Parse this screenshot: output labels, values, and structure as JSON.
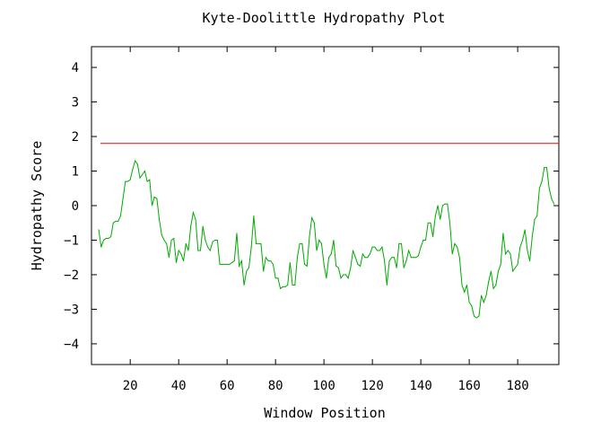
{
  "chart_data": {
    "type": "line",
    "title": "Kyte-Doolittle Hydropathy Plot",
    "xlabel": "Window Position",
    "ylabel": "Hydropathy Score",
    "xlim": [
      4,
      197
    ],
    "ylim": [
      -4.6,
      4.6
    ],
    "xticks": [
      20,
      40,
      60,
      80,
      100,
      120,
      140,
      160,
      180
    ],
    "yticks": [
      -4,
      -3,
      -2,
      -1,
      0,
      1,
      2,
      3,
      4
    ],
    "grid": false,
    "threshold": {
      "value": 1.8,
      "color": "#ff0000"
    },
    "series": [
      {
        "color": "#00aa00",
        "x_start": 7,
        "values": [
          -0.7,
          -1.2,
          -1.0,
          -0.95,
          -0.95,
          -0.9,
          -0.5,
          -0.45,
          -0.45,
          -0.3,
          0.2,
          0.7,
          0.7,
          0.75,
          1.05,
          1.3,
          1.2,
          0.8,
          0.9,
          1.0,
          0.7,
          0.75,
          0.0,
          0.25,
          0.2,
          -0.4,
          -0.85,
          -1.0,
          -1.1,
          -1.5,
          -1.0,
          -0.95,
          -1.65,
          -1.3,
          -1.4,
          -1.6,
          -1.1,
          -1.3,
          -0.6,
          -0.2,
          -0.4,
          -1.3,
          -1.3,
          -0.6,
          -1.0,
          -1.2,
          -1.3,
          -1.05,
          -1.0,
          -1.0,
          -1.7,
          -1.7,
          -1.7,
          -1.7,
          -1.7,
          -1.65,
          -1.6,
          -0.8,
          -1.75,
          -1.6,
          -2.3,
          -1.9,
          -1.8,
          -1.2,
          -0.3,
          -1.1,
          -1.1,
          -1.1,
          -1.9,
          -1.5,
          -1.6,
          -1.6,
          -1.7,
          -2.1,
          -2.1,
          -2.4,
          -2.35,
          -2.35,
          -2.3,
          -1.65,
          -2.3,
          -2.3,
          -1.5,
          -1.1,
          -1.1,
          -1.7,
          -1.75,
          -0.9,
          -0.35,
          -0.5,
          -1.3,
          -1.0,
          -1.1,
          -1.7,
          -2.1,
          -1.5,
          -1.4,
          -1.0,
          -1.75,
          -1.8,
          -2.1,
          -2.0,
          -2.0,
          -2.1,
          -1.8,
          -1.3,
          -1.5,
          -1.7,
          -1.75,
          -1.4,
          -1.5,
          -1.5,
          -1.4,
          -1.2,
          -1.2,
          -1.3,
          -1.3,
          -1.2,
          -1.6,
          -2.3,
          -1.6,
          -1.5,
          -1.5,
          -1.8,
          -1.1,
          -1.1,
          -1.8,
          -1.6,
          -1.3,
          -1.5,
          -1.5,
          -1.5,
          -1.45,
          -1.2,
          -1.0,
          -1.0,
          -0.5,
          -0.5,
          -0.9,
          -0.3,
          0.0,
          -0.4,
          0.0,
          0.05,
          0.05,
          -0.5,
          -1.4,
          -1.1,
          -1.2,
          -1.5,
          -2.3,
          -2.5,
          -2.3,
          -2.8,
          -2.9,
          -3.2,
          -3.25,
          -3.2,
          -2.6,
          -2.8,
          -2.6,
          -2.2,
          -1.9,
          -2.4,
          -2.3,
          -1.9,
          -1.7,
          -0.8,
          -1.4,
          -1.3,
          -1.4,
          -1.9,
          -1.8,
          -1.7,
          -1.2,
          -1.0,
          -0.7,
          -1.3,
          -1.6,
          -0.9,
          -0.4,
          -0.3,
          0.5,
          0.7,
          1.1,
          1.1,
          0.5,
          0.2,
          0.05
        ]
      }
    ]
  }
}
